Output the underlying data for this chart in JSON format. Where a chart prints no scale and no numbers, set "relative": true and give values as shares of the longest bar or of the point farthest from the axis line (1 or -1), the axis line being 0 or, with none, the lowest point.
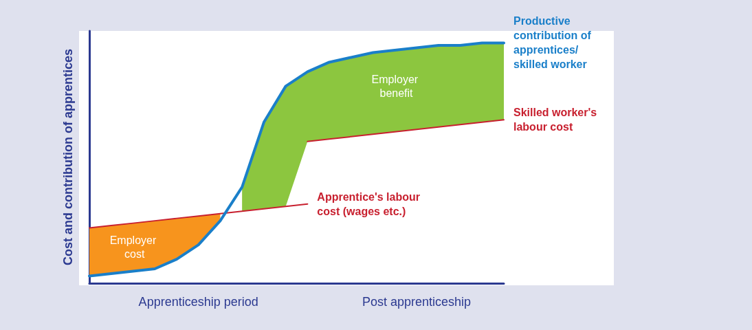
{
  "chart_data": {
    "type": "line",
    "relative": true,
    "ylabel": "Cost and contribution of apprentices",
    "categories": [
      null,
      null,
      null,
      null,
      null,
      null,
      null,
      null,
      null,
      null,
      null,
      null,
      null,
      null,
      null,
      null,
      null,
      null,
      null,
      null
    ],
    "series": [
      {
        "name": "Apprentice's labour cost (wages etc.)",
        "color": "#c8202f",
        "values": [
          0.23,
          0.24,
          0.25,
          0.26,
          0.27,
          0.28,
          0.29,
          0.3,
          0.31,
          0.32,
          0.33,
          null,
          null,
          null,
          null,
          null,
          null,
          null,
          null,
          null
        ]
      },
      {
        "name": "Skilled worker's labour cost",
        "color": "#c8202f",
        "values": [
          null,
          null,
          null,
          null,
          null,
          null,
          null,
          null,
          null,
          null,
          0.59,
          0.6,
          0.61,
          0.62,
          0.63,
          0.64,
          0.65,
          0.66,
          0.67,
          0.68
        ]
      },
      {
        "name": "Productive contribution of apprentices/ skilled worker",
        "color": "#1a7fc9",
        "values": [
          0.03,
          0.04,
          0.05,
          0.06,
          0.1,
          0.16,
          0.26,
          0.4,
          0.67,
          0.82,
          0.88,
          0.92,
          0.94,
          0.96,
          0.97,
          0.98,
          0.99,
          0.99,
          1.0,
          1.0
        ]
      }
    ],
    "annotations": [
      "Employer cost",
      "Employer benefit",
      "Apprenticeship period",
      "Post apprenticeship"
    ],
    "legend": false,
    "grid": false,
    "marker": "none",
    "line_style": "solid"
  }
}
